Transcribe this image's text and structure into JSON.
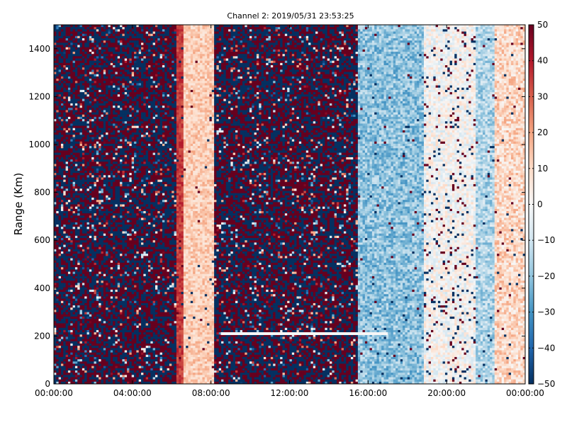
{
  "chart_data": {
    "type": "heatmap",
    "title": "Channel 2: 2019/05/31 23:53:25",
    "xlabel": "",
    "ylabel": "Range (Km)",
    "x_ticks": [
      "00:00:00",
      "04:00:00",
      "08:00:00",
      "12:00:00",
      "16:00:00",
      "20:00:00",
      "00:00:00"
    ],
    "xlim_hours": [
      0,
      24
    ],
    "y_ticks": [
      0,
      200,
      400,
      600,
      800,
      1000,
      1200,
      1400
    ],
    "ylim": [
      0,
      1500
    ],
    "colorbar": {
      "colormap": "RdBu_r",
      "range": [
        -50,
        50
      ],
      "ticks": [
        50,
        40,
        30,
        20,
        10,
        0,
        -10,
        -20,
        -30,
        -40,
        -50
      ],
      "low_color": "#053061",
      "mid_color": "#f7f7f7",
      "high_color": "#67001f"
    },
    "time_bands": [
      {
        "start_h": 0.0,
        "end_h": 6.3,
        "character": "noise",
        "value_range": [
          -50,
          50
        ]
      },
      {
        "start_h": 6.3,
        "end_h": 6.6,
        "character": "strong positive edge",
        "value_range": [
          30,
          40
        ]
      },
      {
        "start_h": 6.6,
        "end_h": 8.2,
        "character": "weak positive",
        "value_range": [
          5,
          20
        ]
      },
      {
        "start_h": 8.2,
        "end_h": 15.5,
        "character": "noise",
        "value_range": [
          -50,
          50
        ]
      },
      {
        "start_h": 15.5,
        "end_h": 18.8,
        "character": "negative",
        "value_range": [
          -30,
          -10
        ]
      },
      {
        "start_h": 18.8,
        "end_h": 21.5,
        "character": "near zero, scattered outliers",
        "value_range": [
          -10,
          10
        ]
      },
      {
        "start_h": 21.5,
        "end_h": 22.5,
        "character": "weak negative",
        "value_range": [
          -25,
          -5
        ]
      },
      {
        "start_h": 22.5,
        "end_h": 24.0,
        "character": "weak positive",
        "value_range": [
          0,
          20
        ]
      }
    ],
    "features": [
      {
        "type": "horizontal line",
        "range_km": 210,
        "start_h": 8.5,
        "end_h": 17.0,
        "value": 0
      }
    ]
  }
}
